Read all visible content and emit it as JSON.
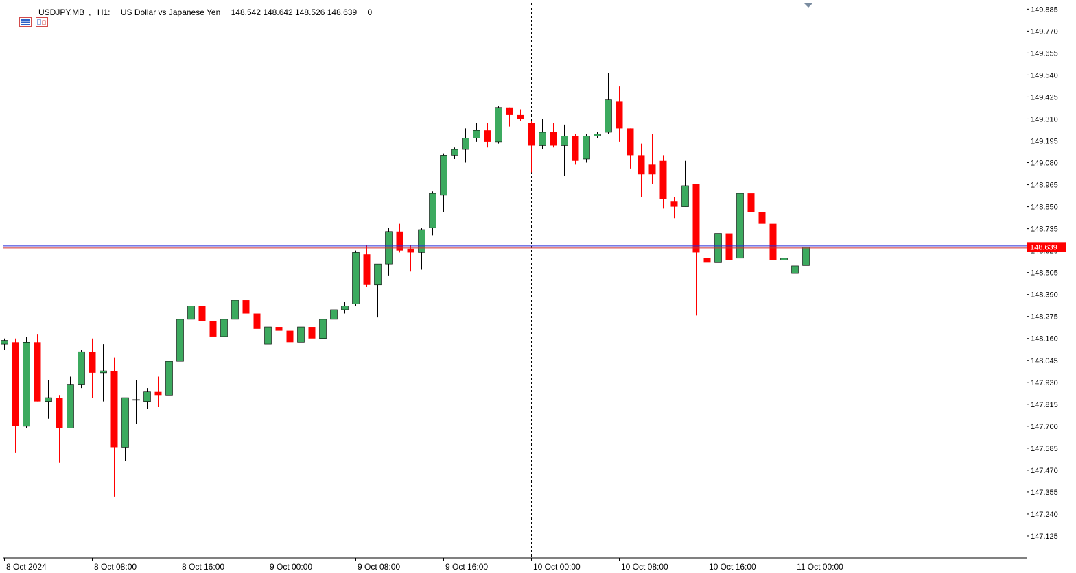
{
  "header": {
    "symbol": "USDJPY.MB",
    "timeframe": "H1:",
    "description": "US Dollar vs Japanese Yen",
    "ohlc": "148.542 148.642 148.526 148.639",
    "volume": "0",
    "icons": [
      "chart-properties-icon",
      "chart-window-icon"
    ]
  },
  "colors": {
    "bull": "#3caa5f",
    "bear": "#ff0000",
    "grid": "#000000",
    "ask_line": "#2b2bd6",
    "bid_line": "#d03030",
    "price_tag_bg": "#ff0000"
  },
  "chart_data": {
    "type": "candlestick",
    "title": "USDJPY.MB, H1",
    "ylim": [
      147.01,
      149.915
    ],
    "last_price": "148.639",
    "y_ticks": [
      "149.885",
      "149.770",
      "149.655",
      "149.540",
      "149.425",
      "149.310",
      "149.195",
      "149.080",
      "148.965",
      "148.850",
      "148.735",
      "148.620",
      "148.505",
      "148.390",
      "148.275",
      "148.160",
      "148.045",
      "147.930",
      "147.815",
      "147.700",
      "147.585",
      "147.470",
      "147.355",
      "147.240",
      "147.125"
    ],
    "x_ticks": [
      {
        "label": "8 Oct 2024",
        "index": 0
      },
      {
        "label": "8 Oct 08:00",
        "index": 8
      },
      {
        "label": "8 Oct 16:00",
        "index": 16
      },
      {
        "label": "9 Oct 00:00",
        "index": 24
      },
      {
        "label": "9 Oct 08:00",
        "index": 32
      },
      {
        "label": "9 Oct 16:00",
        "index": 40
      },
      {
        "label": "10 Oct 00:00",
        "index": 48
      },
      {
        "label": "10 Oct 08:00",
        "index": 56
      },
      {
        "label": "10 Oct 16:00",
        "index": 64
      },
      {
        "label": "11 Oct 00:00",
        "index": 72
      }
    ],
    "separators": [
      24,
      48,
      72
    ],
    "candles": [
      [
        148.13,
        148.16,
        148.1,
        148.15
      ],
      [
        148.14,
        148.16,
        147.56,
        147.7
      ],
      [
        147.7,
        148.17,
        147.69,
        148.14
      ],
      [
        148.14,
        148.18,
        147.83,
        147.83
      ],
      [
        147.83,
        147.94,
        147.74,
        147.85
      ],
      [
        147.85,
        147.86,
        147.51,
        147.69
      ],
      [
        147.69,
        147.96,
        147.69,
        147.92
      ],
      [
        147.92,
        148.1,
        147.9,
        148.09
      ],
      [
        148.09,
        148.16,
        147.85,
        147.98
      ],
      [
        147.98,
        148.13,
        147.83,
        147.99
      ],
      [
        147.99,
        148.06,
        147.33,
        147.59
      ],
      [
        147.59,
        147.85,
        147.52,
        147.85
      ],
      [
        147.84,
        147.94,
        147.71,
        147.84
      ],
      [
        147.83,
        147.9,
        147.79,
        147.88
      ],
      [
        147.88,
        147.96,
        147.8,
        147.86
      ],
      [
        147.86,
        148.05,
        147.86,
        148.04
      ],
      [
        148.04,
        148.3,
        147.97,
        148.26
      ],
      [
        148.26,
        148.34,
        148.23,
        148.33
      ],
      [
        148.33,
        148.37,
        148.2,
        148.25
      ],
      [
        148.25,
        148.31,
        148.07,
        148.17
      ],
      [
        148.17,
        148.3,
        148.17,
        148.26
      ],
      [
        148.26,
        148.37,
        148.22,
        148.36
      ],
      [
        148.36,
        148.38,
        148.26,
        148.29
      ],
      [
        148.29,
        148.33,
        148.19,
        148.21
      ],
      [
        148.13,
        148.25,
        148.12,
        148.22
      ],
      [
        148.22,
        148.25,
        148.19,
        148.2
      ],
      [
        148.2,
        148.25,
        148.11,
        148.14
      ],
      [
        148.14,
        148.24,
        148.04,
        148.22
      ],
      [
        148.22,
        148.42,
        148.17,
        148.16
      ],
      [
        148.16,
        148.28,
        148.08,
        148.26
      ],
      [
        148.26,
        148.33,
        148.23,
        148.31
      ],
      [
        148.31,
        148.35,
        148.29,
        148.33
      ],
      [
        148.34,
        148.62,
        148.33,
        148.61
      ],
      [
        148.6,
        148.65,
        148.43,
        148.44
      ],
      [
        148.44,
        148.55,
        148.27,
        148.55
      ],
      [
        148.55,
        148.74,
        148.49,
        148.72
      ],
      [
        148.72,
        148.76,
        148.61,
        148.62
      ],
      [
        148.63,
        148.65,
        148.51,
        148.61
      ],
      [
        148.61,
        148.74,
        148.52,
        148.73
      ],
      [
        148.74,
        148.93,
        148.7,
        148.92
      ],
      [
        148.91,
        149.13,
        148.82,
        149.12
      ],
      [
        149.12,
        149.16,
        149.1,
        149.15
      ],
      [
        149.15,
        149.26,
        149.08,
        149.21
      ],
      [
        149.21,
        149.29,
        149.19,
        149.25
      ],
      [
        149.25,
        149.29,
        149.16,
        149.19
      ],
      [
        149.19,
        149.38,
        149.18,
        149.37
      ],
      [
        149.37,
        149.37,
        149.27,
        149.33
      ],
      [
        149.33,
        149.36,
        149.3,
        149.31
      ],
      [
        149.29,
        149.3,
        149.03,
        149.17
      ],
      [
        149.17,
        149.31,
        149.15,
        149.24
      ],
      [
        149.24,
        149.29,
        149.16,
        149.17
      ],
      [
        149.17,
        149.28,
        149.01,
        149.22
      ],
      [
        149.22,
        149.23,
        149.07,
        149.09
      ],
      [
        149.1,
        149.23,
        149.08,
        149.22
      ],
      [
        149.22,
        149.24,
        149.21,
        149.23
      ],
      [
        149.24,
        149.55,
        149.23,
        149.41
      ],
      [
        149.4,
        149.48,
        149.19,
        149.26
      ],
      [
        149.26,
        149.26,
        149.05,
        149.12
      ],
      [
        149.12,
        149.18,
        148.9,
        149.02
      ],
      [
        149.07,
        149.23,
        148.97,
        149.02
      ],
      [
        149.09,
        149.12,
        148.84,
        148.89
      ],
      [
        148.88,
        148.9,
        148.79,
        148.85
      ],
      [
        148.85,
        149.09,
        148.85,
        148.96
      ],
      [
        148.97,
        148.97,
        148.28,
        148.61
      ],
      [
        148.58,
        148.78,
        148.4,
        148.56
      ],
      [
        148.56,
        148.88,
        148.37,
        148.71
      ],
      [
        148.71,
        148.82,
        148.44,
        148.57
      ],
      [
        148.58,
        148.97,
        148.42,
        148.92
      ],
      [
        148.92,
        149.08,
        148.8,
        148.82
      ],
      [
        148.82,
        148.84,
        148.7,
        148.76
      ],
      [
        148.76,
        148.76,
        148.5,
        148.57
      ],
      [
        148.57,
        148.6,
        148.52,
        148.58
      ],
      [
        148.5,
        148.54,
        148.48,
        148.54
      ],
      [
        148.542,
        148.642,
        148.526,
        148.639
      ]
    ]
  }
}
